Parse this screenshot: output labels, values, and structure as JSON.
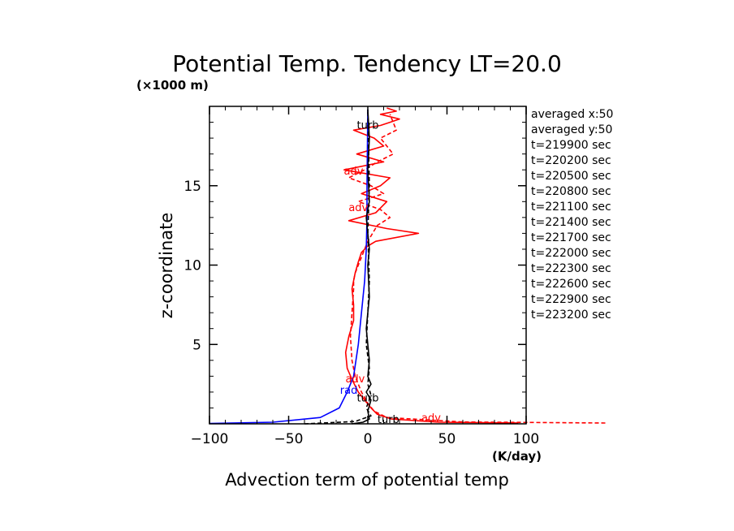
{
  "chart_data": {
    "type": "line",
    "title": "Potential Temp. Tendency LT=20.0",
    "xlabel": "Advection term of potential temp",
    "xunit": "(K/day)",
    "ylabel": "z-coordinate",
    "yunit": "(×1000 m)",
    "xlim": [
      -100,
      100
    ],
    "ylim": [
      0,
      20
    ],
    "xticks": [
      -100,
      -50,
      0,
      50,
      100
    ],
    "yticks": [
      5,
      10,
      15
    ],
    "info": [
      "averaged  x:50",
      "averaged  y:50",
      "t=219900 sec",
      "t=220200 sec",
      "t=220500 sec",
      "t=220800 sec",
      "t=221100 sec",
      "t=221400 sec",
      "t=221700 sec",
      "t=222000 sec",
      "t=222300 sec",
      "t=222600 sec",
      "t=222900 sec",
      "t=223200 sec"
    ],
    "series": [
      {
        "name": "adv",
        "color": "#ff0000",
        "dash": "solid",
        "x": [
          95,
          45,
          15,
          6,
          2,
          -2,
          -6,
          -10,
          -13,
          -14,
          -12,
          -9,
          -9,
          -10,
          -8,
          -6,
          -4,
          0,
          5,
          32,
          12,
          -12,
          5,
          12,
          -4,
          8,
          14,
          -15,
          10,
          -7,
          10,
          4,
          -9,
          8,
          14,
          20,
          8,
          18,
          12
        ],
        "y": [
          0.05,
          0.1,
          0.3,
          0.6,
          1.0,
          1.5,
          2.0,
          2.8,
          3.5,
          4.5,
          5.5,
          6.5,
          7.5,
          8.5,
          9.5,
          10.2,
          10.8,
          11.2,
          11.5,
          12.0,
          12.3,
          12.8,
          13.3,
          14.0,
          14.5,
          15.0,
          15.5,
          16.0,
          16.5,
          17.0,
          17.5,
          18.0,
          18.5,
          18.8,
          19.0,
          19.2,
          19.5,
          19.7,
          19.9
        ],
        "labels": [
          {
            "text": "adv",
            "x": 40,
            "y": 0.15
          },
          {
            "text": "adv",
            "x": -8,
            "y": 2.6
          },
          {
            "text": "adv",
            "x": -6,
            "y": 13.4
          },
          {
            "text": "adv",
            "x": -9,
            "y": 15.7
          }
        ]
      },
      {
        "name": "adv",
        "color": "#ff0000",
        "dash": "dashed",
        "x": [
          150,
          60,
          12,
          4,
          0,
          -4,
          -8,
          -10,
          -11,
          -10,
          -9,
          -9,
          -8,
          -6,
          -4,
          0,
          6,
          14,
          8,
          -6,
          10,
          2,
          -12,
          -2,
          6,
          16,
          12,
          8,
          18,
          14
        ],
        "y": [
          0.05,
          0.12,
          0.4,
          0.8,
          1.3,
          2.0,
          3.0,
          4.0,
          5.5,
          7.0,
          8.5,
          9.0,
          9.5,
          10.0,
          10.5,
          11.5,
          12.5,
          13.0,
          13.5,
          14.0,
          14.5,
          15.0,
          15.5,
          16.0,
          16.5,
          17.0,
          17.5,
          18.0,
          18.5,
          19.5
        ],
        "labels": []
      },
      {
        "name": "rad",
        "color": "#0000ff",
        "dash": "solid",
        "x": [
          -100,
          -60,
          -30,
          -18,
          -13,
          -9,
          -6,
          -4,
          -2,
          -1,
          -0.5,
          -0.5,
          -0.3,
          0
        ],
        "y": [
          0.02,
          0.1,
          0.4,
          1.0,
          2.0,
          3.0,
          5.0,
          7.0,
          9.0,
          11.0,
          13.0,
          15.0,
          17.0,
          19.8
        ],
        "labels": [
          {
            "text": "rad",
            "x": -12,
            "y": 1.9
          }
        ]
      },
      {
        "name": "turb",
        "color": "#000000",
        "dash": "solid",
        "x": [
          -10,
          -3,
          1,
          0,
          2,
          -1,
          2,
          0,
          1,
          0,
          -1,
          1,
          0,
          1,
          0,
          -1,
          1,
          0,
          1,
          0
        ],
        "y": [
          0.0,
          0.1,
          0.3,
          0.8,
          1.5,
          2.0,
          2.5,
          3.0,
          4.0,
          5.0,
          6.0,
          8.0,
          10.0,
          11.0,
          12.0,
          13.0,
          14.0,
          16.0,
          18.0,
          19.8
        ],
        "labels": [
          {
            "text": "turb",
            "x": 13,
            "y": 0.05
          },
          {
            "text": "turb",
            "x": 0,
            "y": 1.4
          },
          {
            "text": "turb",
            "x": 0,
            "y": 18.6
          }
        ]
      },
      {
        "name": "turb",
        "color": "#000000",
        "dash": "dashed",
        "x": [
          -40,
          -8,
          2,
          -1,
          2,
          0,
          1,
          -1,
          0,
          1,
          0,
          1,
          0
        ],
        "y": [
          0.0,
          0.15,
          0.5,
          1.0,
          1.8,
          2.5,
          3.5,
          5.0,
          7.0,
          9.0,
          12.0,
          15.0,
          19.8
        ],
        "labels": []
      }
    ]
  }
}
